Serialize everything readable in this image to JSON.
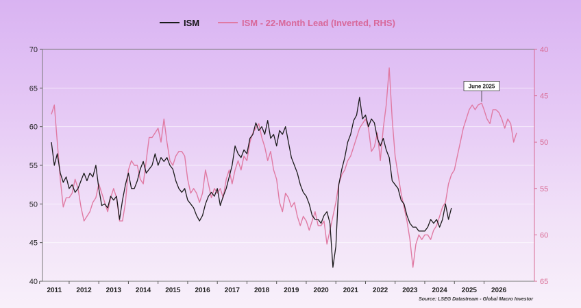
{
  "chart_data": {
    "type": "line",
    "legend": {
      "placement": "top-center"
    },
    "series": [
      {
        "name": "ISM",
        "axis": "left",
        "color": "#1a1a1a",
        "points": [
          [
            2010.9,
            58.0
          ],
          [
            2011.0,
            55.0
          ],
          [
            2011.1,
            56.5
          ],
          [
            2011.2,
            54.0
          ],
          [
            2011.3,
            52.8
          ],
          [
            2011.4,
            53.5
          ],
          [
            2011.5,
            52.0
          ],
          [
            2011.6,
            52.5
          ],
          [
            2011.7,
            51.5
          ],
          [
            2011.8,
            52.0
          ],
          [
            2011.9,
            53.0
          ],
          [
            2012.0,
            54.0
          ],
          [
            2012.1,
            53.0
          ],
          [
            2012.2,
            54.0
          ],
          [
            2012.3,
            53.5
          ],
          [
            2012.4,
            55.0
          ],
          [
            2012.5,
            52.0
          ],
          [
            2012.6,
            49.8
          ],
          [
            2012.7,
            50.0
          ],
          [
            2012.8,
            49.5
          ],
          [
            2012.9,
            51.0
          ],
          [
            2013.0,
            50.5
          ],
          [
            2013.1,
            51.0
          ],
          [
            2013.2,
            48.0
          ],
          [
            2013.3,
            50.5
          ],
          [
            2013.4,
            52.5
          ],
          [
            2013.5,
            54.0
          ],
          [
            2013.6,
            52.0
          ],
          [
            2013.7,
            52.0
          ],
          [
            2013.8,
            53.0
          ],
          [
            2013.9,
            54.5
          ],
          [
            2014.0,
            55.5
          ],
          [
            2014.1,
            54.0
          ],
          [
            2014.2,
            54.5
          ],
          [
            2014.3,
            55.0
          ],
          [
            2014.4,
            56.5
          ],
          [
            2014.5,
            55.0
          ],
          [
            2014.6,
            56.0
          ],
          [
            2014.7,
            55.5
          ],
          [
            2014.8,
            56.0
          ],
          [
            2014.9,
            55.0
          ],
          [
            2015.0,
            54.5
          ],
          [
            2015.1,
            53.0
          ],
          [
            2015.2,
            52.0
          ],
          [
            2015.3,
            51.5
          ],
          [
            2015.4,
            52.0
          ],
          [
            2015.5,
            50.5
          ],
          [
            2015.6,
            50.0
          ],
          [
            2015.7,
            49.5
          ],
          [
            2015.8,
            48.5
          ],
          [
            2015.9,
            47.8
          ],
          [
            2016.0,
            48.5
          ],
          [
            2016.1,
            50.0
          ],
          [
            2016.2,
            51.0
          ],
          [
            2016.3,
            51.5
          ],
          [
            2016.4,
            51.0
          ],
          [
            2016.5,
            52.0
          ],
          [
            2016.6,
            49.8
          ],
          [
            2016.7,
            51.0
          ],
          [
            2016.8,
            52.0
          ],
          [
            2016.9,
            53.5
          ],
          [
            2017.0,
            55.0
          ],
          [
            2017.1,
            57.5
          ],
          [
            2017.2,
            56.5
          ],
          [
            2017.3,
            56.0
          ],
          [
            2017.4,
            57.0
          ],
          [
            2017.5,
            56.5
          ],
          [
            2017.6,
            58.5
          ],
          [
            2017.7,
            59.0
          ],
          [
            2017.8,
            60.5
          ],
          [
            2017.9,
            59.5
          ],
          [
            2018.0,
            60.0
          ],
          [
            2018.1,
            59.0
          ],
          [
            2018.2,
            60.8
          ],
          [
            2018.3,
            58.5
          ],
          [
            2018.4,
            59.0
          ],
          [
            2018.5,
            57.5
          ],
          [
            2018.6,
            59.5
          ],
          [
            2018.7,
            59.0
          ],
          [
            2018.8,
            60.0
          ],
          [
            2018.9,
            58.0
          ],
          [
            2019.0,
            56.0
          ],
          [
            2019.1,
            55.0
          ],
          [
            2019.2,
            54.0
          ],
          [
            2019.3,
            52.5
          ],
          [
            2019.4,
            51.5
          ],
          [
            2019.5,
            51.0
          ],
          [
            2019.6,
            50.0
          ],
          [
            2019.7,
            48.5
          ],
          [
            2019.8,
            48.0
          ],
          [
            2019.9,
            48.0
          ],
          [
            2020.0,
            47.5
          ],
          [
            2020.1,
            48.5
          ],
          [
            2020.2,
            49.0
          ],
          [
            2020.3,
            47.5
          ],
          [
            2020.4,
            41.8
          ],
          [
            2020.5,
            44.5
          ],
          [
            2020.6,
            52.5
          ],
          [
            2020.7,
            54.5
          ],
          [
            2020.8,
            56.0
          ],
          [
            2020.9,
            58.0
          ],
          [
            2021.0,
            59.0
          ],
          [
            2021.1,
            60.8
          ],
          [
            2021.2,
            61.5
          ],
          [
            2021.3,
            63.8
          ],
          [
            2021.4,
            61.0
          ],
          [
            2021.5,
            61.5
          ],
          [
            2021.6,
            60.0
          ],
          [
            2021.7,
            61.0
          ],
          [
            2021.8,
            60.5
          ],
          [
            2021.9,
            58.5
          ],
          [
            2022.0,
            57.5
          ],
          [
            2022.1,
            58.5
          ],
          [
            2022.2,
            57.0
          ],
          [
            2022.3,
            56.0
          ],
          [
            2022.4,
            53.0
          ],
          [
            2022.5,
            52.5
          ],
          [
            2022.6,
            52.0
          ],
          [
            2022.7,
            50.5
          ],
          [
            2022.8,
            50.0
          ],
          [
            2022.9,
            48.5
          ],
          [
            2023.0,
            47.5
          ],
          [
            2023.1,
            47.0
          ],
          [
            2023.2,
            47.0
          ],
          [
            2023.3,
            46.5
          ],
          [
            2023.4,
            46.5
          ],
          [
            2023.5,
            46.5
          ],
          [
            2023.6,
            47.0
          ],
          [
            2023.7,
            48.0
          ],
          [
            2023.8,
            47.5
          ],
          [
            2023.9,
            48.0
          ],
          [
            2024.0,
            47.0
          ],
          [
            2024.1,
            48.0
          ],
          [
            2024.2,
            50.0
          ],
          [
            2024.3,
            48.0
          ],
          [
            2024.4,
            49.5
          ]
        ]
      },
      {
        "name": "ISM - 22-Month Lead (Inverted, RHS)",
        "axis": "right",
        "color": "#e07aa3",
        "points": [
          [
            2010.9,
            47.0
          ],
          [
            2011.0,
            46.0
          ],
          [
            2011.1,
            50.0
          ],
          [
            2011.2,
            54.0
          ],
          [
            2011.3,
            57.0
          ],
          [
            2011.4,
            56.0
          ],
          [
            2011.5,
            56.0
          ],
          [
            2011.6,
            55.5
          ],
          [
            2011.7,
            54.0
          ],
          [
            2011.8,
            55.0
          ],
          [
            2011.9,
            57.0
          ],
          [
            2012.0,
            58.5
          ],
          [
            2012.1,
            58.0
          ],
          [
            2012.2,
            57.5
          ],
          [
            2012.3,
            56.5
          ],
          [
            2012.4,
            56.0
          ],
          [
            2012.5,
            54.5
          ],
          [
            2012.6,
            55.5
          ],
          [
            2012.7,
            56.5
          ],
          [
            2012.8,
            57.5
          ],
          [
            2012.9,
            56.0
          ],
          [
            2013.0,
            55.0
          ],
          [
            2013.1,
            56.0
          ],
          [
            2013.2,
            58.5
          ],
          [
            2013.3,
            58.5
          ],
          [
            2013.4,
            56.5
          ],
          [
            2013.5,
            53.0
          ],
          [
            2013.6,
            52.0
          ],
          [
            2013.7,
            52.5
          ],
          [
            2013.8,
            52.5
          ],
          [
            2013.9,
            54.0
          ],
          [
            2014.0,
            54.5
          ],
          [
            2014.1,
            52.0
          ],
          [
            2014.2,
            49.5
          ],
          [
            2014.3,
            49.5
          ],
          [
            2014.4,
            49.0
          ],
          [
            2014.5,
            48.5
          ],
          [
            2014.6,
            50.0
          ],
          [
            2014.7,
            47.5
          ],
          [
            2014.8,
            50.0
          ],
          [
            2014.9,
            52.0
          ],
          [
            2015.0,
            52.5
          ],
          [
            2015.1,
            51.5
          ],
          [
            2015.2,
            51.0
          ],
          [
            2015.3,
            51.0
          ],
          [
            2015.4,
            51.5
          ],
          [
            2015.5,
            54.0
          ],
          [
            2015.6,
            55.5
          ],
          [
            2015.7,
            55.0
          ],
          [
            2015.8,
            55.5
          ],
          [
            2015.9,
            56.5
          ],
          [
            2016.0,
            55.5
          ],
          [
            2016.1,
            53.0
          ],
          [
            2016.2,
            54.5
          ],
          [
            2016.3,
            56.0
          ],
          [
            2016.4,
            55.0
          ],
          [
            2016.5,
            55.5
          ],
          [
            2016.6,
            55.0
          ],
          [
            2016.7,
            56.0
          ],
          [
            2016.8,
            54.0
          ],
          [
            2016.9,
            53.0
          ],
          [
            2017.0,
            54.5
          ],
          [
            2017.1,
            53.0
          ],
          [
            2017.2,
            52.0
          ],
          [
            2017.3,
            53.0
          ],
          [
            2017.4,
            51.5
          ],
          [
            2017.5,
            52.0
          ],
          [
            2017.6,
            50.0
          ],
          [
            2017.7,
            49.0
          ],
          [
            2017.8,
            48.5
          ],
          [
            2017.9,
            48.0
          ],
          [
            2018.0,
            49.5
          ],
          [
            2018.1,
            50.5
          ],
          [
            2018.2,
            52.0
          ],
          [
            2018.3,
            51.0
          ],
          [
            2018.4,
            53.0
          ],
          [
            2018.5,
            54.0
          ],
          [
            2018.6,
            56.5
          ],
          [
            2018.7,
            57.5
          ],
          [
            2018.8,
            55.5
          ],
          [
            2018.9,
            56.0
          ],
          [
            2019.0,
            57.0
          ],
          [
            2019.1,
            56.5
          ],
          [
            2019.2,
            58.0
          ],
          [
            2019.3,
            59.0
          ],
          [
            2019.4,
            58.0
          ],
          [
            2019.5,
            58.5
          ],
          [
            2019.6,
            59.5
          ],
          [
            2019.7,
            58.5
          ],
          [
            2019.8,
            57.5
          ],
          [
            2019.9,
            59.0
          ],
          [
            2020.0,
            59.0
          ],
          [
            2020.1,
            58.5
          ],
          [
            2020.2,
            61.0
          ],
          [
            2020.3,
            59.5
          ],
          [
            2020.4,
            58.0
          ],
          [
            2020.5,
            56.5
          ],
          [
            2020.6,
            54.5
          ],
          [
            2020.7,
            53.5
          ],
          [
            2020.8,
            53.0
          ],
          [
            2020.9,
            52.0
          ],
          [
            2021.0,
            51.5
          ],
          [
            2021.1,
            50.5
          ],
          [
            2021.2,
            49.5
          ],
          [
            2021.3,
            48.5
          ],
          [
            2021.4,
            48.0
          ],
          [
            2021.5,
            47.5
          ],
          [
            2021.6,
            48.5
          ],
          [
            2021.7,
            51.0
          ],
          [
            2021.8,
            50.5
          ],
          [
            2021.9,
            49.0
          ],
          [
            2022.0,
            52.0
          ],
          [
            2022.1,
            48.5
          ],
          [
            2022.2,
            46.0
          ],
          [
            2022.3,
            42.0
          ],
          [
            2022.4,
            47.5
          ],
          [
            2022.5,
            51.5
          ],
          [
            2022.6,
            53.5
          ],
          [
            2022.7,
            55.5
          ],
          [
            2022.8,
            57.0
          ],
          [
            2022.9,
            58.5
          ],
          [
            2023.0,
            60.5
          ],
          [
            2023.1,
            63.5
          ],
          [
            2023.2,
            61.0
          ],
          [
            2023.3,
            60.0
          ],
          [
            2023.4,
            60.5
          ],
          [
            2023.5,
            60.0
          ],
          [
            2023.6,
            60.0
          ],
          [
            2023.7,
            60.5
          ],
          [
            2023.8,
            59.5
          ],
          [
            2023.9,
            59.0
          ],
          [
            2024.0,
            58.0
          ],
          [
            2024.1,
            57.0
          ],
          [
            2024.2,
            56.5
          ],
          [
            2024.3,
            54.5
          ],
          [
            2024.4,
            53.5
          ],
          [
            2024.5,
            53.0
          ],
          [
            2024.6,
            51.5
          ],
          [
            2024.7,
            50.0
          ],
          [
            2024.8,
            48.5
          ],
          [
            2024.9,
            47.5
          ],
          [
            2025.0,
            46.5
          ],
          [
            2025.1,
            46.0
          ],
          [
            2025.2,
            46.5
          ],
          [
            2025.3,
            46.0
          ],
          [
            2025.42,
            45.8
          ],
          [
            2025.5,
            46.5
          ],
          [
            2025.6,
            47.5
          ],
          [
            2025.7,
            48.0
          ],
          [
            2025.8,
            46.5
          ],
          [
            2025.9,
            46.5
          ],
          [
            2026.0,
            46.8
          ],
          [
            2026.1,
            47.5
          ],
          [
            2026.2,
            48.5
          ],
          [
            2026.3,
            47.5
          ],
          [
            2026.4,
            48.0
          ],
          [
            2026.5,
            50.0
          ],
          [
            2026.6,
            49.0
          ]
        ]
      }
    ],
    "y_left": {
      "min": 40,
      "max": 70,
      "ticks": [
        70,
        65,
        60,
        55,
        50,
        45,
        40
      ]
    },
    "y_right": {
      "min": 40,
      "max": 65,
      "inverted": true,
      "ticks": [
        40,
        45,
        50,
        55,
        60,
        65
      ]
    },
    "x": {
      "min": 2010.6,
      "max": 2027.2,
      "ticks": [
        "2011",
        "2012",
        "2013",
        "2014",
        "2015",
        "2016",
        "2017",
        "2018",
        "2019",
        "2020",
        "2021",
        "2022",
        "2023",
        "2024",
        "2025",
        "2026"
      ]
    },
    "grid": {
      "horizontal": true,
      "vertical": false
    },
    "annotation": {
      "text": "June 2025",
      "x": 2025.42,
      "series": 1
    },
    "source": "Source: LSEG Datastream - Global Macro Investor"
  }
}
